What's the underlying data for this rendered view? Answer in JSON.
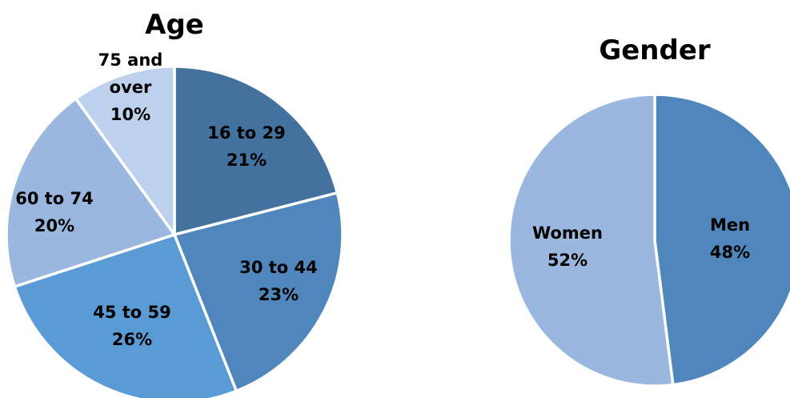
{
  "chart_data": [
    {
      "type": "pie",
      "title": "Age",
      "slices": [
        {
          "label": [
            "16 to 29",
            "21%"
          ],
          "value": 21,
          "color": "#44729F"
        },
        {
          "label": [
            "30 to 44",
            "23%"
          ],
          "value": 23,
          "color": "#4F86BB"
        },
        {
          "label": [
            "45 to 59",
            "26%"
          ],
          "value": 26,
          "color": "#5B9BD5"
        },
        {
          "label": [
            "60 to 74",
            "20%"
          ],
          "value": 20,
          "color": "#9AB8DF"
        },
        {
          "label": [
            "75 and",
            "over",
            "10%"
          ],
          "value": 10,
          "color": "#BDD1EC"
        }
      ],
      "start_angle_deg": 0,
      "direction": "clockwise"
    },
    {
      "type": "pie",
      "title": "Gender",
      "slices": [
        {
          "label": [
            "Men",
            "48%"
          ],
          "value": 48,
          "color": "#4F86BB"
        },
        {
          "label": [
            "Women",
            "52%"
          ],
          "value": 52,
          "color": "#9AB8DF"
        }
      ],
      "start_angle_deg": 0,
      "direction": "clockwise"
    }
  ]
}
